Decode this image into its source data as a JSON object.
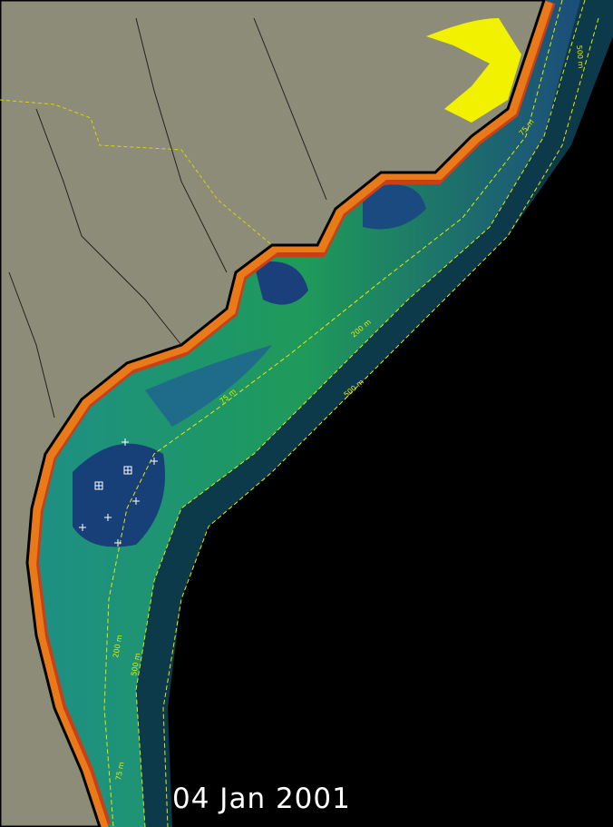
{
  "date": "04 Jan 2001",
  "contour_labels": [
    "75 m",
    "200 m",
    "500 m",
    "200 m",
    "500 m",
    "75 m",
    "500 m",
    "75 m"
  ]
}
